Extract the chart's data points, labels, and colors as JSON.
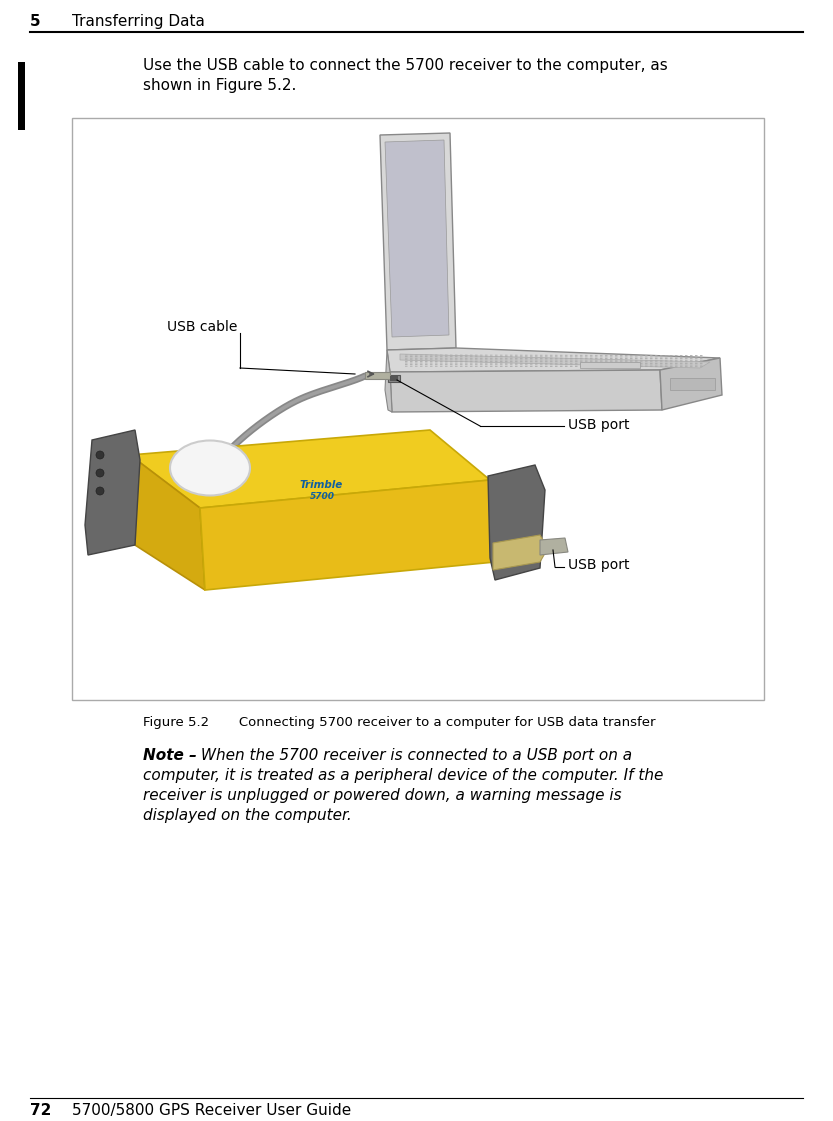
{
  "page_bg": "#ffffff",
  "header_chapter_num": "5",
  "header_chapter_title": "Transferring Data",
  "footer_page_num": "72",
  "footer_text": "5700/5800 GPS Receiver User Guide",
  "figure_caption": "Figure 5.2       Connecting 5700 receiver to a computer for USB data transfer",
  "label_usb_cable": "USB cable",
  "label_usb_port1": "USB port",
  "label_usb_port2": "USB port",
  "note_bold": "Note –",
  "note_italic": " When the 5700 receiver is connected to a USB port on a\ncomputer, it is treated as a peripheral device of the computer. If the\nreceiver is unplugged or powered down, a warning message is\ndisplayed on the computer.",
  "text_color": "#000000",
  "fig_bg": "#ffffff",
  "fig_border": "#aaaaaa"
}
